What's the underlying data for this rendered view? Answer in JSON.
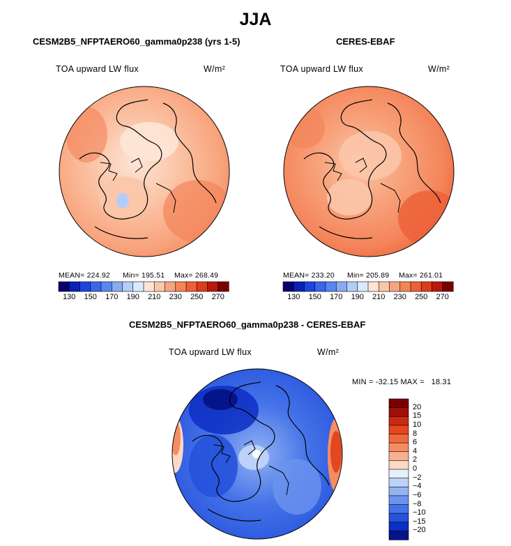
{
  "season_title": "JJA",
  "panels": [
    {
      "title": "CESM2B5_NFPTAERO60_gamma0p238 (yrs 1-5)",
      "variable_label": "TOA upward LW flux",
      "units": "W/m²",
      "stats": {
        "mean": "MEAN= 224.92",
        "min": "Min= 195.51",
        "max": "Max= 268.49"
      }
    },
    {
      "title": "CERES-EBAF",
      "variable_label": "TOA upward LW flux",
      "units": "W/m²",
      "stats": {
        "mean": "MEAN= 233.20",
        "min": "Min= 205.89",
        "max": "Max= 261.01"
      }
    },
    {
      "title": "CESM2B5_NFPTAERO60_gamma0p238 - CERES-EBAF",
      "variable_label": "TOA upward LW flux",
      "units": "W/m²",
      "minmax": "MIN = -32.15 MAX =   18.31"
    }
  ],
  "chart_data": [
    {
      "type": "heatmap",
      "projection": "north polar stereographic",
      "title": "CESM2B5_NFPTAERO60_gamma0p238 (yrs 1-5)",
      "variable": "TOA upward LW flux",
      "units": "W/m2",
      "mean": 224.92,
      "min": 195.51,
      "max": 268.49,
      "colorbar_levels": [
        130,
        140,
        150,
        160,
        170,
        180,
        190,
        200,
        210,
        220,
        230,
        240,
        250,
        260,
        270
      ],
      "colorbar_tick_labels": [
        "130",
        "150",
        "170",
        "190",
        "210",
        "230",
        "250",
        "270"
      ]
    },
    {
      "type": "heatmap",
      "projection": "north polar stereographic",
      "title": "CERES-EBAF",
      "variable": "TOA upward LW flux",
      "units": "W/m2",
      "mean": 233.2,
      "min": 205.89,
      "max": 261.01,
      "colorbar_levels": [
        130,
        140,
        150,
        160,
        170,
        180,
        190,
        200,
        210,
        220,
        230,
        240,
        250,
        260,
        270
      ],
      "colorbar_tick_labels": [
        "130",
        "150",
        "170",
        "190",
        "210",
        "230",
        "250",
        "270"
      ]
    },
    {
      "type": "heatmap",
      "projection": "north polar stereographic",
      "title": "CESM2B5_NFPTAERO60_gamma0p238 - CERES-EBAF",
      "variable": "TOA upward LW flux",
      "units": "W/m2",
      "min": -32.15,
      "max": 18.31,
      "colorbar_levels": [
        -20,
        -15,
        -10,
        -8,
        -6,
        -4,
        -2,
        0,
        2,
        4,
        6,
        8,
        10,
        15,
        20
      ],
      "colorbar_tick_labels": [
        "20",
        "15",
        "10",
        "8",
        "6",
        "4",
        "2",
        "0",
        "−2",
        "−4",
        "−6",
        "−8",
        "−10",
        "−15",
        "−20"
      ]
    }
  ],
  "colors": {
    "h_bar": [
      "#08006e",
      "#0a20b8",
      "#1f44dd",
      "#3a66ea",
      "#5a86ef",
      "#87aaf3",
      "#b3cdf8",
      "#daeafc",
      "#fde5d6",
      "#fbc7aa",
      "#f8a57e",
      "#f4845a",
      "#ec5f37",
      "#dc3b1d",
      "#b81909",
      "#7a0000"
    ],
    "v_bar_top_to_bottom": [
      "#7a0000",
      "#a20f06",
      "#c82a12",
      "#e2471f",
      "#f0693c",
      "#f58d63",
      "#f8b08f",
      "#fcd8c5",
      "#e6f0fc",
      "#bcd2f8",
      "#93b3f3",
      "#6c93ee",
      "#4472e8",
      "#2552dc",
      "#0d2ec4",
      "#06148a"
    ]
  }
}
